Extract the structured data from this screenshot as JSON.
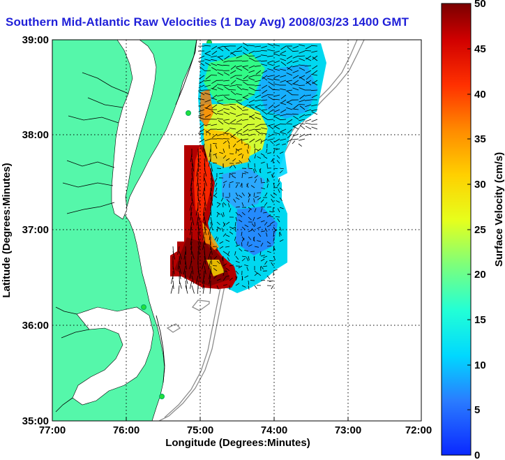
{
  "title": "Southern Mid-Atlantic Raw Velocities (1 Day Avg) 2008/03/23 1400 GMT",
  "x_axis": {
    "label": "Longitude (Degrees:Minutes)",
    "ticks": [
      "77:00",
      "76:00",
      "75:00",
      "74:00",
      "73:00",
      "72:00"
    ],
    "values": [
      -77,
      -76,
      -75,
      -74,
      -73,
      -72
    ]
  },
  "y_axis": {
    "label": "Latitude (Degrees:Minutes)",
    "ticks": [
      "39:00",
      "38:00",
      "37:00",
      "36:00",
      "35:00"
    ],
    "values": [
      39,
      38,
      37,
      36,
      35
    ]
  },
  "colorbar": {
    "label": "Surface Velocity (cm/s)",
    "min": 0,
    "max": 50,
    "ticks": [
      "50",
      "45",
      "40",
      "35",
      "30",
      "25",
      "20",
      "15",
      "10",
      "5",
      "0"
    ]
  },
  "colors": {
    "title": "#1f1fd8",
    "land": "#55f7aa",
    "grid": "#000000"
  }
}
